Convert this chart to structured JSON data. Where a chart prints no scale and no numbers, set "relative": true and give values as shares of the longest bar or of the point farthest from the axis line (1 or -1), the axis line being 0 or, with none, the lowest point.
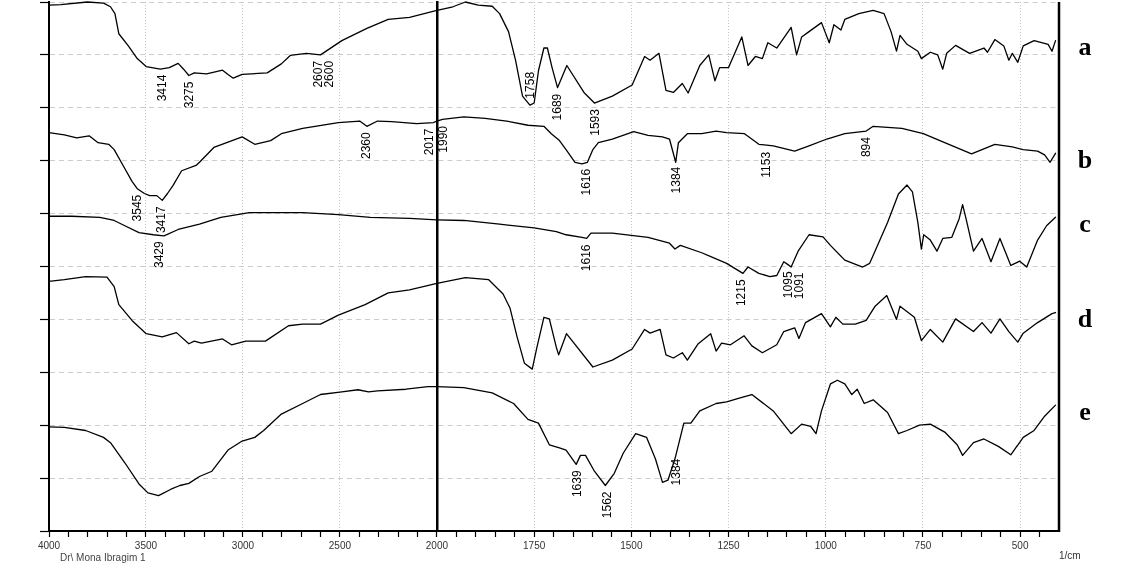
{
  "chart_data": [
    {
      "type": "line",
      "relative": true,
      "xlim": [
        4000,
        2000
      ],
      "xticks": [
        4000,
        {
          "value": 3900,
          "label": null
        },
        {
          "value": 3800,
          "label": null
        },
        {
          "value": 3700,
          "label": null
        },
        {
          "value": 3600,
          "label": null
        },
        3500,
        {
          "value": 3400,
          "label": null
        },
        {
          "value": 3300,
          "label": null
        },
        {
          "value": 3200,
          "label": null
        },
        {
          "value": 3100,
          "label": null
        },
        3000,
        {
          "value": 2900,
          "label": null
        },
        {
          "value": 2800,
          "label": null
        },
        {
          "value": 2700,
          "label": null
        },
        {
          "value": 2600,
          "label": null
        },
        2500,
        {
          "value": 2400,
          "label": null
        },
        {
          "value": 2300,
          "label": null
        },
        {
          "value": 2200,
          "label": null
        },
        {
          "value": 2100,
          "label": null
        },
        2000
      ],
      "grid": true,
      "series": [
        {
          "color": "#000000",
          "x": [
            4000,
            3939,
            3802,
            3719,
            3683,
            3660,
            3640,
            3591,
            3545,
            3499,
            3426,
            3380,
            3334,
            3306,
            3279,
            3251,
            3187,
            3105,
            3077,
            3050,
            3004,
            2875,
            2802,
            2756,
            2673,
            2600,
            2490,
            2361,
            2251,
            2141,
            2000
          ],
          "values": [
            0.994,
            0.995,
            1.0,
            0.998,
            0.991,
            0.978,
            0.94,
            0.917,
            0.893,
            0.878,
            0.873,
            0.876,
            0.884,
            0.873,
            0.861,
            0.866,
            0.864,
            0.871,
            0.863,
            0.856,
            0.863,
            0.866,
            0.883,
            0.899,
            0.903,
            0.9,
            0.927,
            0.95,
            0.967,
            0.971,
            0.984
          ]
        },
        {
          "color": "#000000",
          "x": [
            4000,
            3921,
            3857,
            3793,
            3747,
            3692,
            3664,
            3618,
            3572,
            3545,
            3508,
            3481,
            3444,
            3416,
            3389,
            3361,
            3316,
            3242,
            3224,
            3150,
            3004,
            2939,
            2857,
            2802,
            2692,
            2508,
            2398,
            2361,
            2306,
            2233,
            2104,
            2018,
            2000
          ],
          "values": [
            0.753,
            0.749,
            0.743,
            0.747,
            0.734,
            0.731,
            0.721,
            0.691,
            0.661,
            0.647,
            0.638,
            0.634,
            0.634,
            0.625,
            0.638,
            0.653,
            0.681,
            0.691,
            0.697,
            0.725,
            0.745,
            0.731,
            0.738,
            0.751,
            0.761,
            0.772,
            0.775,
            0.765,
            0.775,
            0.774,
            0.77,
            0.772,
            0.775
          ]
        },
        {
          "color": "#000000",
          "x": [
            4000,
            3884,
            3738,
            3664,
            3609,
            3536,
            3462,
            3407,
            3334,
            3224,
            3114,
            2967,
            2692,
            2508,
            2343,
            2141,
            2000
          ],
          "values": [
            0.595,
            0.595,
            0.593,
            0.587,
            0.577,
            0.564,
            0.56,
            0.558,
            0.57,
            0.58,
            0.593,
            0.602,
            0.602,
            0.598,
            0.593,
            0.591,
            0.588
          ]
        },
        {
          "color": "#000000",
          "x": [
            4000,
            3921,
            3811,
            3701,
            3664,
            3640,
            3572,
            3499,
            3416,
            3343,
            3279,
            3251,
            3214,
            3105,
            3059,
            2985,
            2884,
            2765,
            2692,
            2600,
            2508,
            2370,
            2251,
            2141,
            2000
          ],
          "values": [
            0.472,
            0.475,
            0.481,
            0.48,
            0.462,
            0.428,
            0.398,
            0.373,
            0.367,
            0.375,
            0.354,
            0.359,
            0.355,
            0.363,
            0.352,
            0.359,
            0.359,
            0.388,
            0.391,
            0.391,
            0.408,
            0.428,
            0.45,
            0.456,
            0.468
          ]
        },
        {
          "color": "#000000",
          "x": [
            4000,
            3921,
            3811,
            3719,
            3683,
            3609,
            3536,
            3490,
            3435,
            3371,
            3325,
            3279,
            3224,
            3160,
            3077,
            3004,
            2939,
            2893,
            2802,
            2692,
            2600,
            2490,
            2407,
            2352,
            2306,
            2159,
            2046,
            2000
          ],
          "values": [
            0.197,
            0.196,
            0.19,
            0.177,
            0.167,
            0.129,
            0.089,
            0.072,
            0.067,
            0.079,
            0.086,
            0.09,
            0.103,
            0.113,
            0.153,
            0.17,
            0.177,
            0.19,
            0.221,
            0.241,
            0.258,
            0.263,
            0.267,
            0.263,
            0.265,
            0.268,
            0.273,
            0.273
          ]
        }
      ],
      "annotations": [
        {
          "text": "3414",
          "x": 3414,
          "y": 0.874
        },
        {
          "text": "3275",
          "x": 3275,
          "y": 0.861
        },
        {
          "text": "2607",
          "x": 2607,
          "y": 0.9
        },
        {
          "text": "2600",
          "x": 2600,
          "y": 0.9
        },
        {
          "text": "3545",
          "x": 3545,
          "y": 0.647
        },
        {
          "text": "3417",
          "x": 3417,
          "y": 0.625
        },
        {
          "text": "2360",
          "x": 2360,
          "y": 0.765
        },
        {
          "text": "2017",
          "x": 2017,
          "y": 0.772
        },
        {
          "text": "3429",
          "x": 3429,
          "y": 0.559
        },
        "Dr\\ Mona Ibragim 1"
      ]
    },
    {
      "type": "line",
      "relative": true,
      "xlabel": "1/cm",
      "xlim": [
        2000,
        400
      ],
      "tick_labels": "x",
      "xticks": [
        {
          "value": 1950,
          "label": null
        },
        {
          "value": 1900,
          "label": null
        },
        {
          "value": 1850,
          "label": null
        },
        {
          "value": 1800,
          "label": null
        },
        1750,
        {
          "value": 1700,
          "label": null
        },
        {
          "value": 1650,
          "label": null
        },
        {
          "value": 1600,
          "label": null
        },
        {
          "value": 1550,
          "label": null
        },
        1500,
        {
          "value": 1450,
          "label": null
        },
        {
          "value": 1400,
          "label": null
        },
        {
          "value": 1350,
          "label": null
        },
        {
          "value": 1300,
          "label": null
        },
        1250,
        {
          "value": 1200,
          "label": null
        },
        {
          "value": 1150,
          "label": null
        },
        {
          "value": 1100,
          "label": null
        },
        {
          "value": 1050,
          "label": null
        },
        1000,
        {
          "value": 950,
          "label": null
        },
        {
          "value": 900,
          "label": null
        },
        {
          "value": 850,
          "label": null
        },
        {
          "value": 800,
          "label": null
        },
        750,
        {
          "value": 700,
          "label": null
        },
        {
          "value": 650,
          "label": null
        },
        {
          "value": 600,
          "label": null
        },
        {
          "value": 550,
          "label": null
        },
        500,
        {
          "value": 450,
          "label": null
        }
      ],
      "grid": true,
      "series": [
        {
          "name": "a",
          "color": "#000000",
          "x": [
            2000,
            1959,
            1927,
            1894,
            1858,
            1839,
            1816,
            1798,
            1780,
            1761,
            1750,
            1739,
            1725,
            1716,
            1704,
            1690,
            1666,
            1622,
            1595,
            1549,
            1498,
            1466,
            1452,
            1429,
            1411,
            1392,
            1369,
            1354,
            1324,
            1301,
            1285,
            1273,
            1250,
            1216,
            1200,
            1181,
            1163,
            1149,
            1126,
            1089,
            1075,
            1062,
            1043,
            1011,
            991,
            979,
            961,
            951,
            915,
            878,
            850,
            832,
            818,
            809,
            791,
            763,
            754,
            731,
            712,
            699,
            689,
            666,
            630,
            593,
            584,
            565,
            542,
            529,
            520,
            506,
            492,
            464,
            428,
            418,
            409
          ],
          "values": [
            0.984,
            0.991,
            1.0,
            0.994,
            0.992,
            0.978,
            0.944,
            0.89,
            0.822,
            0.805,
            0.809,
            0.87,
            0.913,
            0.913,
            0.876,
            0.838,
            0.88,
            0.829,
            0.809,
            0.822,
            0.843,
            0.897,
            0.89,
            0.903,
            0.833,
            0.829,
            0.846,
            0.828,
            0.88,
            0.9,
            0.851,
            0.876,
            0.876,
            0.934,
            0.88,
            0.897,
            0.893,
            0.923,
            0.913,
            0.952,
            0.9,
            0.934,
            0.944,
            0.961,
            0.923,
            0.957,
            0.947,
            0.967,
            0.978,
            0.984,
            0.978,
            0.944,
            0.907,
            0.937,
            0.92,
            0.907,
            0.893,
            0.905,
            0.9,
            0.873,
            0.903,
            0.918,
            0.903,
            0.913,
            0.905,
            0.929,
            0.917,
            0.89,
            0.903,
            0.886,
            0.917,
            0.927,
            0.92,
            0.907,
            0.927
          ]
        },
        {
          "name": "b",
          "color": "#000000",
          "x": [
            2000,
            1986,
            1931,
            1876,
            1821,
            1766,
            1725,
            1706,
            1685,
            1668,
            1645,
            1627,
            1613,
            1599,
            1585,
            1549,
            1494,
            1457,
            1420,
            1402,
            1386,
            1379,
            1356,
            1319,
            1282,
            1255,
            1209,
            1172,
            1135,
            1080,
            1043,
            997,
            951,
            896,
            878,
            804,
            749,
            694,
            625,
            565,
            520,
            492,
            455,
            437,
            423,
            409
          ],
          "values": [
            0.775,
            0.778,
            0.783,
            0.78,
            0.775,
            0.767,
            0.765,
            0.751,
            0.738,
            0.721,
            0.697,
            0.694,
            0.697,
            0.721,
            0.734,
            0.741,
            0.755,
            0.748,
            0.745,
            0.741,
            0.697,
            0.734,
            0.751,
            0.751,
            0.756,
            0.753,
            0.751,
            0.731,
            0.728,
            0.718,
            0.728,
            0.741,
            0.751,
            0.756,
            0.765,
            0.761,
            0.751,
            0.734,
            0.713,
            0.731,
            0.726,
            0.721,
            0.718,
            0.711,
            0.697,
            0.714
          ]
        },
        {
          "name": "c",
          "color": "#000000",
          "x": [
            2000,
            1931,
            1839,
            1750,
            1693,
            1668,
            1627,
            1615,
            1604,
            1549,
            1457,
            1402,
            1388,
            1374,
            1319,
            1255,
            1213,
            1200,
            1172,
            1144,
            1126,
            1108,
            1098,
            1089,
            1071,
            1043,
            1007,
            988,
            951,
            905,
            887,
            841,
            813,
            791,
            777,
            763,
            754,
            748,
            731,
            714,
            699,
            676,
            657,
            648,
            639,
            620,
            598,
            575,
            552,
            524,
            501,
            483,
            455,
            432,
            409
          ],
          "values": [
            0.588,
            0.587,
            0.58,
            0.573,
            0.566,
            0.56,
            0.555,
            0.553,
            0.563,
            0.563,
            0.555,
            0.544,
            0.533,
            0.54,
            0.526,
            0.506,
            0.487,
            0.499,
            0.487,
            0.481,
            0.483,
            0.509,
            0.504,
            0.499,
            0.529,
            0.56,
            0.556,
            0.54,
            0.512,
            0.499,
            0.506,
            0.583,
            0.637,
            0.654,
            0.641,
            0.583,
            0.533,
            0.56,
            0.55,
            0.529,
            0.553,
            0.555,
            0.59,
            0.617,
            0.59,
            0.529,
            0.553,
            0.509,
            0.553,
            0.502,
            0.51,
            0.499,
            0.55,
            0.577,
            0.593
          ]
        },
        {
          "name": "d",
          "color": "#000000",
          "x": [
            2000,
            1927,
            1867,
            1830,
            1812,
            1794,
            1775,
            1755,
            1743,
            1725,
            1711,
            1693,
            1687,
            1667,
            1599,
            1549,
            1498,
            1466,
            1452,
            1426,
            1411,
            1392,
            1369,
            1356,
            1328,
            1296,
            1282,
            1268,
            1245,
            1210,
            1190,
            1163,
            1126,
            1108,
            1080,
            1069,
            1052,
            1011,
            988,
            974,
            956,
            924,
            896,
            873,
            843,
            818,
            809,
            772,
            754,
            731,
            699,
            666,
            620,
            598,
            575,
            552,
            529,
            506,
            492,
            455,
            418,
            409
          ],
          "values": [
            0.468,
            0.479,
            0.475,
            0.448,
            0.421,
            0.367,
            0.317,
            0.306,
            0.347,
            0.404,
            0.401,
            0.347,
            0.333,
            0.373,
            0.31,
            0.323,
            0.344,
            0.381,
            0.374,
            0.381,
            0.333,
            0.327,
            0.337,
            0.323,
            0.354,
            0.373,
            0.34,
            0.355,
            0.352,
            0.369,
            0.35,
            0.337,
            0.352,
            0.377,
            0.384,
            0.364,
            0.394,
            0.411,
            0.386,
            0.404,
            0.391,
            0.391,
            0.398,
            0.425,
            0.445,
            0.4,
            0.425,
            0.404,
            0.36,
            0.381,
            0.357,
            0.401,
            0.377,
            0.394,
            0.374,
            0.401,
            0.377,
            0.357,
            0.374,
            0.394,
            0.411,
            0.413
          ]
        },
        {
          "name": "e",
          "color": "#000000",
          "x": [
            2000,
            1931,
            1858,
            1803,
            1766,
            1739,
            1711,
            1685,
            1668,
            1642,
            1631,
            1618,
            1595,
            1567,
            1544,
            1521,
            1489,
            1461,
            1438,
            1420,
            1406,
            1388,
            1365,
            1347,
            1324,
            1282,
            1255,
            1218,
            1190,
            1135,
            1089,
            1062,
            1039,
            1025,
            1011,
            988,
            970,
            951,
            933,
            919,
            901,
            878,
            841,
            813,
            791,
            759,
            731,
            694,
            662,
            648,
            620,
            593,
            556,
            524,
            492,
            464,
            437,
            409
          ],
          "values": [
            0.273,
            0.271,
            0.261,
            0.241,
            0.211,
            0.204,
            0.163,
            0.157,
            0.153,
            0.126,
            0.143,
            0.143,
            0.113,
            0.086,
            0.109,
            0.147,
            0.184,
            0.177,
            0.136,
            0.092,
            0.096,
            0.136,
            0.204,
            0.204,
            0.227,
            0.241,
            0.244,
            0.252,
            0.258,
            0.227,
            0.184,
            0.202,
            0.198,
            0.184,
            0.227,
            0.278,
            0.285,
            0.278,
            0.258,
            0.268,
            0.241,
            0.248,
            0.224,
            0.184,
            0.19,
            0.2,
            0.202,
            0.187,
            0.163,
            0.143,
            0.167,
            0.174,
            0.16,
            0.144,
            0.177,
            0.19,
            0.217,
            0.238
          ]
        }
      ],
      "annotations": [
        {
          "text": "1758",
          "x": 1758,
          "y": 0.806
        },
        {
          "text": "1689",
          "x": 1689,
          "y": 0.838
        },
        {
          "text": "1593",
          "x": 1593,
          "y": 0.809
        },
        {
          "text": "1990",
          "x": 1990,
          "y": 0.777
        },
        {
          "text": "1616",
          "x": 1616,
          "y": 0.696
        },
        {
          "text": "1384",
          "x": 1384,
          "y": 0.7
        },
        {
          "text": "1153",
          "x": 1153,
          "y": 0.728
        },
        {
          "text": "894",
          "x": 894,
          "y": 0.756
        },
        {
          "text": "1616",
          "x": 1616,
          "y": 0.553
        },
        {
          "text": "1215",
          "x": 1215,
          "y": 0.487
        },
        {
          "text": "1095",
          "x": 1095,
          "y": 0.502
        },
        {
          "text": "1091",
          "x": 1091,
          "y": 0.5
        },
        {
          "text": "1639",
          "x": 1639,
          "y": 0.126
        },
        {
          "text": "1562",
          "x": 1562,
          "y": 0.086
        },
        {
          "text": "1384",
          "x": 1384,
          "y": 0.148
        }
      ]
    }
  ]
}
